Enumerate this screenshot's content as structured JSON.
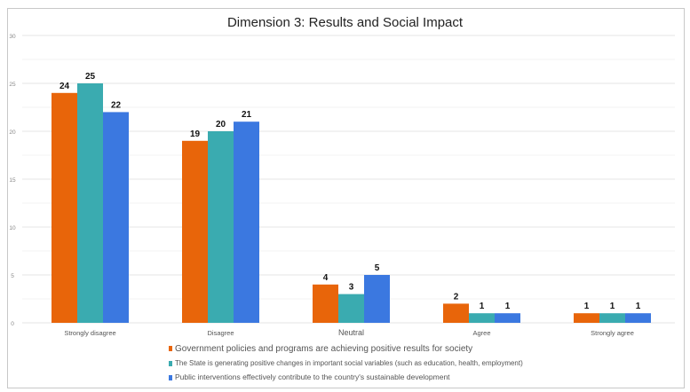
{
  "chart_data": {
    "type": "bar",
    "title": "Dimension 3: Results and Social Impact",
    "xlabel": "",
    "ylabel": "",
    "ylim": [
      0,
      30
    ],
    "yticks": [
      0,
      5,
      10,
      15,
      20,
      25,
      30
    ],
    "grid": true,
    "legend_position": "bottom",
    "categories": [
      "Strongly disagree",
      "Disagree",
      "Neutral",
      "Agree",
      "Strongly agree"
    ],
    "series": [
      {
        "name": "Government policies and programs are achieving positive results for society",
        "color": "#e8650a",
        "values": [
          24,
          19,
          4,
          2,
          1
        ]
      },
      {
        "name": "The State is generating positive changes in important social variables (such as education, health, employment)",
        "color": "#3aabb0",
        "values": [
          25,
          20,
          3,
          1,
          1
        ]
      },
      {
        "name": "Public interventions effectively contribute to the country's sustainable development",
        "color": "#3b78e0",
        "values": [
          22,
          21,
          5,
          1,
          1
        ]
      }
    ]
  }
}
